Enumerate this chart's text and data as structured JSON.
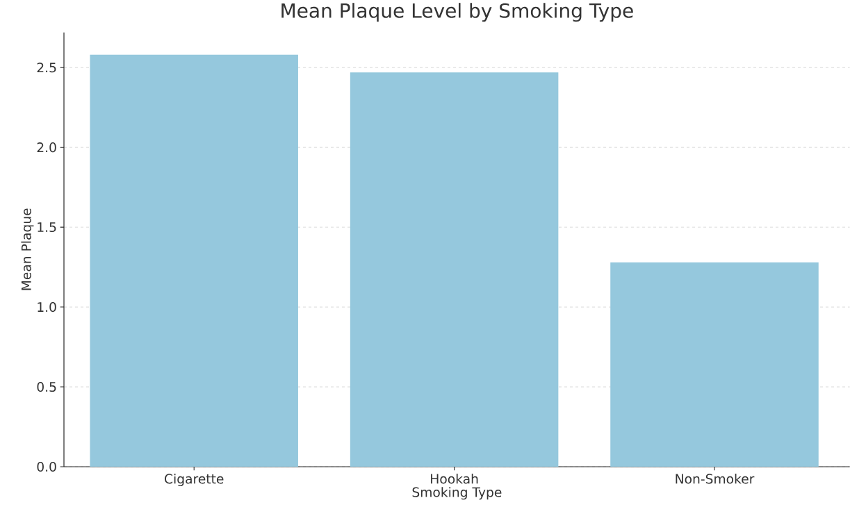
{
  "chart_data": {
    "type": "bar",
    "title": "Mean Plaque Level by Smoking Type",
    "xlabel": "Smoking Type",
    "ylabel": "Mean Plaque",
    "categories": [
      "Cigarette",
      "Hookah",
      "Non-Smoker"
    ],
    "values": [
      2.58,
      2.47,
      1.28
    ],
    "color": "#95c8dd",
    "ylim": [
      0,
      2.72
    ],
    "yticks": [
      {
        "value": 0,
        "label": "0.0"
      },
      {
        "value": 0.5,
        "label": "0.5"
      },
      {
        "value": 1,
        "label": "1.0"
      },
      {
        "value": 1.5,
        "label": "1.5"
      },
      {
        "value": 2,
        "label": "2.0"
      },
      {
        "value": 2.5,
        "label": "2.5"
      }
    ],
    "grid": "y"
  }
}
